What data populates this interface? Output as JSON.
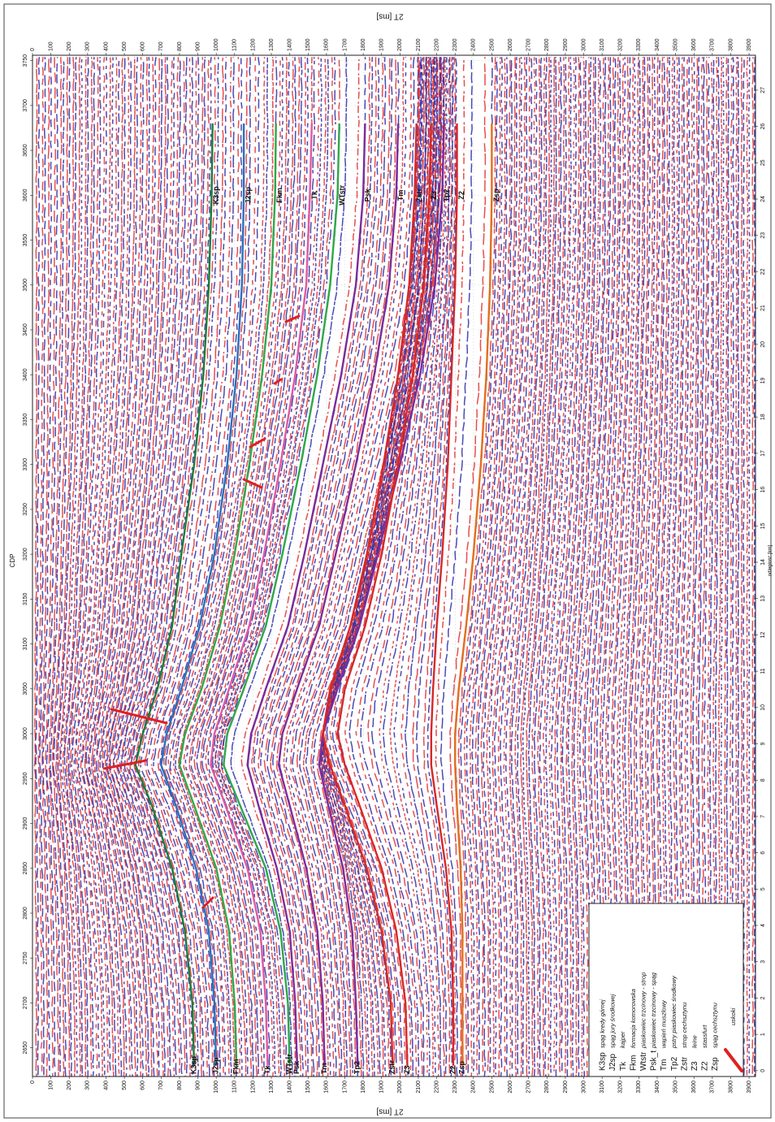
{
  "section": {
    "time_label": "2T [ms]",
    "cdp_label": "CDP",
    "distance_label": "odległość [km]",
    "time_lim": [
      0,
      3935
    ],
    "cdp_lim": [
      2618,
      3756
    ],
    "km_lim": [
      -0.16,
      27.96
    ],
    "time_ticks": [
      0,
      100,
      200,
      300,
      400,
      500,
      600,
      700,
      800,
      900,
      1000,
      1100,
      1200,
      1300,
      1400,
      1500,
      1600,
      1700,
      1800,
      1900,
      2000,
      2100,
      2200,
      2300,
      2400,
      2500,
      2600,
      2700,
      2800,
      2900,
      3000,
      3100,
      3200,
      3300,
      3400,
      3500,
      3600,
      3700,
      3800,
      3900
    ],
    "cdp_ticks": [
      2650,
      2700,
      2750,
      2800,
      2850,
      2900,
      2950,
      3000,
      3050,
      3100,
      3150,
      3200,
      3250,
      3300,
      3350,
      3400,
      3450,
      3500,
      3550,
      3600,
      3650,
      3700,
      3750
    ],
    "km_ticks": [
      0,
      1,
      2,
      3,
      4,
      5,
      6,
      7,
      8,
      9,
      10,
      11,
      12,
      13,
      14,
      15,
      16,
      17,
      18,
      19,
      20,
      21,
      22,
      23,
      24,
      25,
      26,
      27
    ],
    "horizon_cdps": [
      2630,
      2700,
      2780,
      2850,
      2920,
      2965,
      3000,
      3050,
      3120,
      3200,
      3300,
      3400,
      3500,
      3600,
      3680
    ],
    "horizons": [
      {
        "code": "K3sp",
        "description": "spąg kredy górnej",
        "color": "#1b7a3a",
        "times": [
          880,
          870,
          830,
          760,
          650,
          560,
          600,
          680,
          760,
          810,
          880,
          930,
          960,
          975,
          980
        ]
      },
      {
        "code": "J2sp",
        "description": "spąg jury środkowej",
        "color": "#2a6ebb",
        "times": [
          1000,
          990,
          960,
          890,
          780,
          700,
          730,
          810,
          910,
          990,
          1060,
          1110,
          1140,
          1150,
          1150
        ]
      },
      {
        "code": "Tk",
        "description": "kajper",
        "color": "#e05aa0",
        "times": [
          1280,
          1270,
          1240,
          1170,
          1050,
          970,
          990,
          1070,
          1180,
          1260,
          1350,
          1430,
          1490,
          1510,
          1520
        ]
      },
      {
        "code": "Fkm",
        "description": "formacja komorowska",
        "color": "#2fa84a",
        "times": [
          1110,
          1100,
          1070,
          1000,
          880,
          800,
          830,
          920,
          1020,
          1100,
          1180,
          1250,
          1300,
          1320,
          1325
        ]
      },
      {
        "code": "Wtstr",
        "map_label": "WTstr",
        "description": "piaskowiec trzcinowy - strop",
        "color": "#2fa84a",
        "times": [
          1400,
          1390,
          1350,
          1270,
          1130,
          1040,
          1060,
          1150,
          1270,
          1360,
          1460,
          1550,
          1620,
          1660,
          1670
        ]
      },
      {
        "code": "Psk_t",
        "map_label": "Psk",
        "description": "piaskowiec trzcinowy - spąg",
        "color": "#7a2c9c",
        "times": [
          1440,
          1430,
          1400,
          1330,
          1230,
          1170,
          1190,
          1270,
          1390,
          1480,
          1580,
          1680,
          1760,
          1800,
          1810
        ]
      },
      {
        "code": "Tm",
        "description": "wapień muszlowy",
        "color": "#7a2c9c",
        "times": [
          1590,
          1580,
          1550,
          1490,
          1400,
          1340,
          1360,
          1440,
          1560,
          1650,
          1760,
          1860,
          1940,
          1980,
          1990
        ]
      },
      {
        "code": "Tp2",
        "description": "pstry piaskowiec środkowy",
        "color": "#7a2c9c",
        "times": [
          1770,
          1760,
          1740,
          1690,
          1610,
          1560,
          1580,
          1660,
          1780,
          1880,
          2000,
          2110,
          2190,
          2230,
          2240
        ]
      },
      {
        "code": "Zstr",
        "description": "strop cechsztynu",
        "color": "#d62828",
        "times": [
          1960,
          1950,
          1900,
          1820,
          1700,
          1620,
          1580,
          1620,
          1730,
          1820,
          1910,
          1990,
          2050,
          2080,
          2090
        ]
      },
      {
        "code": "Z3",
        "description": "leine",
        "color": "#d62828",
        "times": [
          2040,
          2030,
          1980,
          1900,
          1780,
          1700,
          1660,
          1700,
          1810,
          1900,
          1990,
          2070,
          2130,
          2160,
          2170
        ]
      },
      {
        "code": "Z2",
        "description": "stassfurt",
        "color": "#d62828",
        "times": [
          2290,
          2290,
          2280,
          2250,
          2200,
          2170,
          2170,
          2180,
          2200,
          2230,
          2260,
          2280,
          2300,
          2310,
          2310
        ]
      },
      {
        "code": "Zsp",
        "description": "spąg cechsztynu",
        "color": "#e07020",
        "times": [
          2340,
          2340,
          2340,
          2330,
          2310,
          2300,
          2300,
          2320,
          2360,
          2400,
          2440,
          2470,
          2490,
          2500,
          2500
        ]
      }
    ],
    "fault_label": "uskoki",
    "fault_color": "#e02020"
  }
}
